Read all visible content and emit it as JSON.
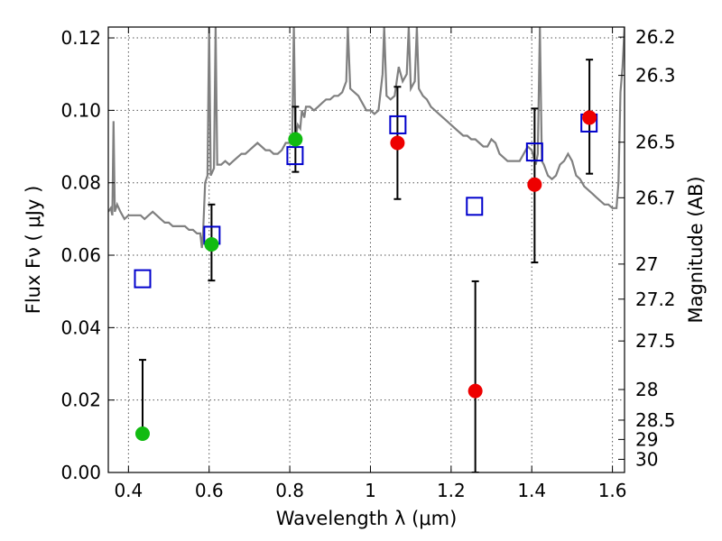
{
  "chart_data": {
    "type": "scatter",
    "title": "",
    "xlabel": "Wavelength  λ (μm)",
    "ylabel": "Flux  Fν  ( μJy )",
    "y2label": "Magnitude (AB)",
    "xlim": [
      0.35,
      1.63
    ],
    "ylim": [
      0.0,
      0.123
    ],
    "grid": true,
    "xticks": [
      {
        "v": 0.4,
        "label": "0.4"
      },
      {
        "v": 0.6,
        "label": "0.6"
      },
      {
        "v": 0.8,
        "label": "0.8"
      },
      {
        "v": 1.0,
        "label": "1"
      },
      {
        "v": 1.2,
        "label": "1.2"
      },
      {
        "v": 1.4,
        "label": "1.4"
      },
      {
        "v": 1.6,
        "label": "1.6"
      }
    ],
    "yticks": [
      {
        "v": 0.0,
        "label": "0.00"
      },
      {
        "v": 0.02,
        "label": "0.02"
      },
      {
        "v": 0.04,
        "label": "0.04"
      },
      {
        "v": 0.06,
        "label": "0.06"
      },
      {
        "v": 0.08,
        "label": "0.08"
      },
      {
        "v": 0.1,
        "label": "0.10"
      },
      {
        "v": 0.12,
        "label": "0.12"
      }
    ],
    "y2ticks": [
      {
        "mag": 26.2,
        "label": "26.2"
      },
      {
        "mag": 26.3,
        "label": "26.3"
      },
      {
        "mag": 26.5,
        "label": "26.5"
      },
      {
        "mag": 26.7,
        "label": "26.7"
      },
      {
        "mag": 27.0,
        "label": "27"
      },
      {
        "mag": 27.2,
        "label": "27.2"
      },
      {
        "mag": 27.5,
        "label": "27.5"
      },
      {
        "mag": 28.0,
        "label": "28"
      },
      {
        "mag": 28.5,
        "label": "28.5"
      },
      {
        "mag": 29.0,
        "label": "29"
      },
      {
        "mag": 30.0,
        "label": "30"
      }
    ],
    "colors": {
      "spectrum": "#808080",
      "model_box": "#0000cc",
      "green": "#11bb11",
      "red": "#ee0000",
      "errorbar": "#000000",
      "grid": "#555555"
    },
    "spectrum": [
      [
        0.35,
        0.072
      ],
      [
        0.356,
        0.073
      ],
      [
        0.36,
        0.071
      ],
      [
        0.363,
        0.097
      ],
      [
        0.366,
        0.072
      ],
      [
        0.372,
        0.074
      ],
      [
        0.38,
        0.072
      ],
      [
        0.39,
        0.07
      ],
      [
        0.4,
        0.071
      ],
      [
        0.41,
        0.071
      ],
      [
        0.42,
        0.071
      ],
      [
        0.43,
        0.071
      ],
      [
        0.44,
        0.07
      ],
      [
        0.45,
        0.071
      ],
      [
        0.46,
        0.072
      ],
      [
        0.47,
        0.071
      ],
      [
        0.48,
        0.07
      ],
      [
        0.49,
        0.069
      ],
      [
        0.5,
        0.069
      ],
      [
        0.51,
        0.068
      ],
      [
        0.52,
        0.068
      ],
      [
        0.53,
        0.068
      ],
      [
        0.54,
        0.068
      ],
      [
        0.55,
        0.067
      ],
      [
        0.56,
        0.067
      ],
      [
        0.57,
        0.066
      ],
      [
        0.578,
        0.066
      ],
      [
        0.582,
        0.062
      ],
      [
        0.585,
        0.066
      ],
      [
        0.59,
        0.08
      ],
      [
        0.596,
        0.082
      ],
      [
        0.6,
        0.123
      ],
      [
        0.604,
        0.082
      ],
      [
        0.608,
        0.083
      ],
      [
        0.612,
        0.084
      ],
      [
        0.616,
        0.123
      ],
      [
        0.62,
        0.085
      ],
      [
        0.63,
        0.085
      ],
      [
        0.64,
        0.086
      ],
      [
        0.65,
        0.085
      ],
      [
        0.66,
        0.086
      ],
      [
        0.67,
        0.087
      ],
      [
        0.68,
        0.088
      ],
      [
        0.69,
        0.088
      ],
      [
        0.7,
        0.089
      ],
      [
        0.71,
        0.09
      ],
      [
        0.72,
        0.091
      ],
      [
        0.73,
        0.09
      ],
      [
        0.74,
        0.089
      ],
      [
        0.75,
        0.089
      ],
      [
        0.76,
        0.088
      ],
      [
        0.77,
        0.088
      ],
      [
        0.78,
        0.089
      ],
      [
        0.79,
        0.091
      ],
      [
        0.8,
        0.091
      ],
      [
        0.806,
        0.093
      ],
      [
        0.81,
        0.123
      ],
      [
        0.814,
        0.092
      ],
      [
        0.82,
        0.096
      ],
      [
        0.826,
        0.095
      ],
      [
        0.83,
        0.1
      ],
      [
        0.836,
        0.098
      ],
      [
        0.84,
        0.101
      ],
      [
        0.85,
        0.101
      ],
      [
        0.86,
        0.1
      ],
      [
        0.87,
        0.101
      ],
      [
        0.88,
        0.102
      ],
      [
        0.89,
        0.103
      ],
      [
        0.9,
        0.103
      ],
      [
        0.91,
        0.104
      ],
      [
        0.92,
        0.104
      ],
      [
        0.93,
        0.105
      ],
      [
        0.94,
        0.108
      ],
      [
        0.944,
        0.123
      ],
      [
        0.95,
        0.106
      ],
      [
        0.96,
        0.105
      ],
      [
        0.97,
        0.104
      ],
      [
        0.98,
        0.102
      ],
      [
        0.99,
        0.1
      ],
      [
        1.0,
        0.1
      ],
      [
        1.01,
        0.099
      ],
      [
        1.02,
        0.1
      ],
      [
        1.03,
        0.11
      ],
      [
        1.034,
        0.123
      ],
      [
        1.04,
        0.104
      ],
      [
        1.05,
        0.103
      ],
      [
        1.06,
        0.104
      ],
      [
        1.07,
        0.112
      ],
      [
        1.08,
        0.108
      ],
      [
        1.09,
        0.11
      ],
      [
        1.095,
        0.123
      ],
      [
        1.1,
        0.106
      ],
      [
        1.11,
        0.108
      ],
      [
        1.115,
        0.123
      ],
      [
        1.12,
        0.106
      ],
      [
        1.13,
        0.104
      ],
      [
        1.14,
        0.103
      ],
      [
        1.15,
        0.101
      ],
      [
        1.16,
        0.1
      ],
      [
        1.17,
        0.099
      ],
      [
        1.18,
        0.098
      ],
      [
        1.19,
        0.097
      ],
      [
        1.2,
        0.096
      ],
      [
        1.21,
        0.095
      ],
      [
        1.22,
        0.094
      ],
      [
        1.23,
        0.093
      ],
      [
        1.24,
        0.093
      ],
      [
        1.25,
        0.092
      ],
      [
        1.26,
        0.092
      ],
      [
        1.27,
        0.091
      ],
      [
        1.28,
        0.09
      ],
      [
        1.29,
        0.09
      ],
      [
        1.3,
        0.092
      ],
      [
        1.31,
        0.091
      ],
      [
        1.32,
        0.088
      ],
      [
        1.33,
        0.087
      ],
      [
        1.34,
        0.086
      ],
      [
        1.35,
        0.086
      ],
      [
        1.36,
        0.086
      ],
      [
        1.37,
        0.086
      ],
      [
        1.38,
        0.088
      ],
      [
        1.39,
        0.09
      ],
      [
        1.4,
        0.089
      ],
      [
        1.41,
        0.085
      ],
      [
        1.415,
        0.088
      ],
      [
        1.42,
        0.123
      ],
      [
        1.425,
        0.086
      ],
      [
        1.43,
        0.085
      ],
      [
        1.44,
        0.082
      ],
      [
        1.45,
        0.081
      ],
      [
        1.46,
        0.082
      ],
      [
        1.47,
        0.085
      ],
      [
        1.48,
        0.086
      ],
      [
        1.49,
        0.088
      ],
      [
        1.5,
        0.086
      ],
      [
        1.51,
        0.082
      ],
      [
        1.52,
        0.081
      ],
      [
        1.53,
        0.079
      ],
      [
        1.54,
        0.078
      ],
      [
        1.55,
        0.077
      ],
      [
        1.56,
        0.076
      ],
      [
        1.57,
        0.075
      ],
      [
        1.58,
        0.074
      ],
      [
        1.59,
        0.074
      ],
      [
        1.6,
        0.073
      ],
      [
        1.61,
        0.073
      ],
      [
        1.615,
        0.08
      ],
      [
        1.62,
        0.105
      ],
      [
        1.625,
        0.112
      ],
      [
        1.63,
        0.123
      ]
    ],
    "model_boxes": [
      {
        "x": 0.435,
        "y": 0.0535
      },
      {
        "x": 0.607,
        "y": 0.0655
      },
      {
        "x": 0.813,
        "y": 0.0875
      },
      {
        "x": 1.068,
        "y": 0.096
      },
      {
        "x": 1.258,
        "y": 0.0735
      },
      {
        "x": 1.407,
        "y": 0.0885
      },
      {
        "x": 1.542,
        "y": 0.0965
      }
    ],
    "green_points": [
      {
        "x": 0.435,
        "y": 0.0107,
        "yerr_low": 0.0107,
        "yerr_high": 0.0311
      },
      {
        "x": 0.606,
        "y": 0.063,
        "yerr_low": 0.053,
        "yerr_high": 0.074
      },
      {
        "x": 0.814,
        "y": 0.092,
        "yerr_low": 0.083,
        "yerr_high": 0.101
      }
    ],
    "red_points": [
      {
        "x": 1.067,
        "y": 0.091,
        "yerr_low": 0.0755,
        "yerr_high": 0.1065
      },
      {
        "x": 1.26,
        "y": 0.0225,
        "yerr_low": 0.0,
        "yerr_high": 0.0528
      },
      {
        "x": 1.407,
        "y": 0.0795,
        "yerr_low": 0.058,
        "yerr_high": 0.1005
      },
      {
        "x": 1.543,
        "y": 0.098,
        "yerr_low": 0.0825,
        "yerr_high": 0.114
      }
    ]
  }
}
